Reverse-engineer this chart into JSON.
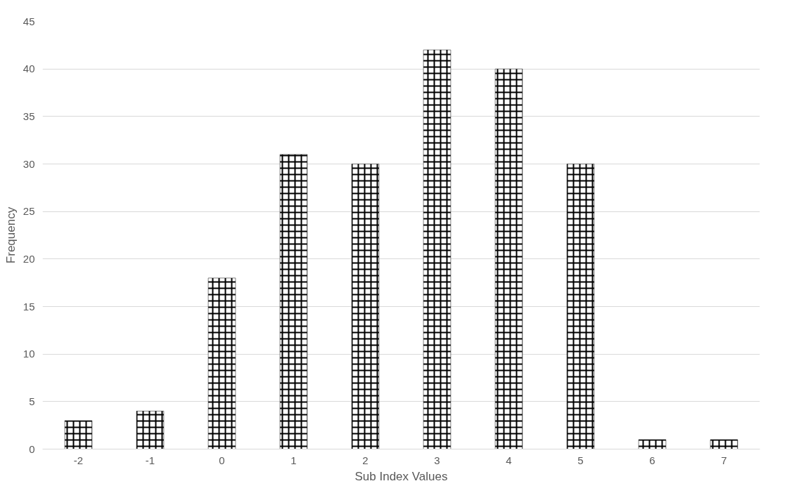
{
  "chart_data": {
    "type": "bar",
    "xlabel": "Sub Index Values",
    "ylabel": "Frequency",
    "categories": [
      "-2",
      "-1",
      "0",
      "1",
      "2",
      "3",
      "4",
      "5",
      "6",
      "7"
    ],
    "values": [
      3,
      4,
      18,
      31,
      30,
      42,
      40,
      30,
      1,
      1
    ],
    "color": "#000000",
    "ylim": [
      0,
      45
    ],
    "yticks": [
      0,
      5,
      10,
      15,
      20,
      25,
      30,
      35,
      40,
      45
    ],
    "grid": "y"
  }
}
